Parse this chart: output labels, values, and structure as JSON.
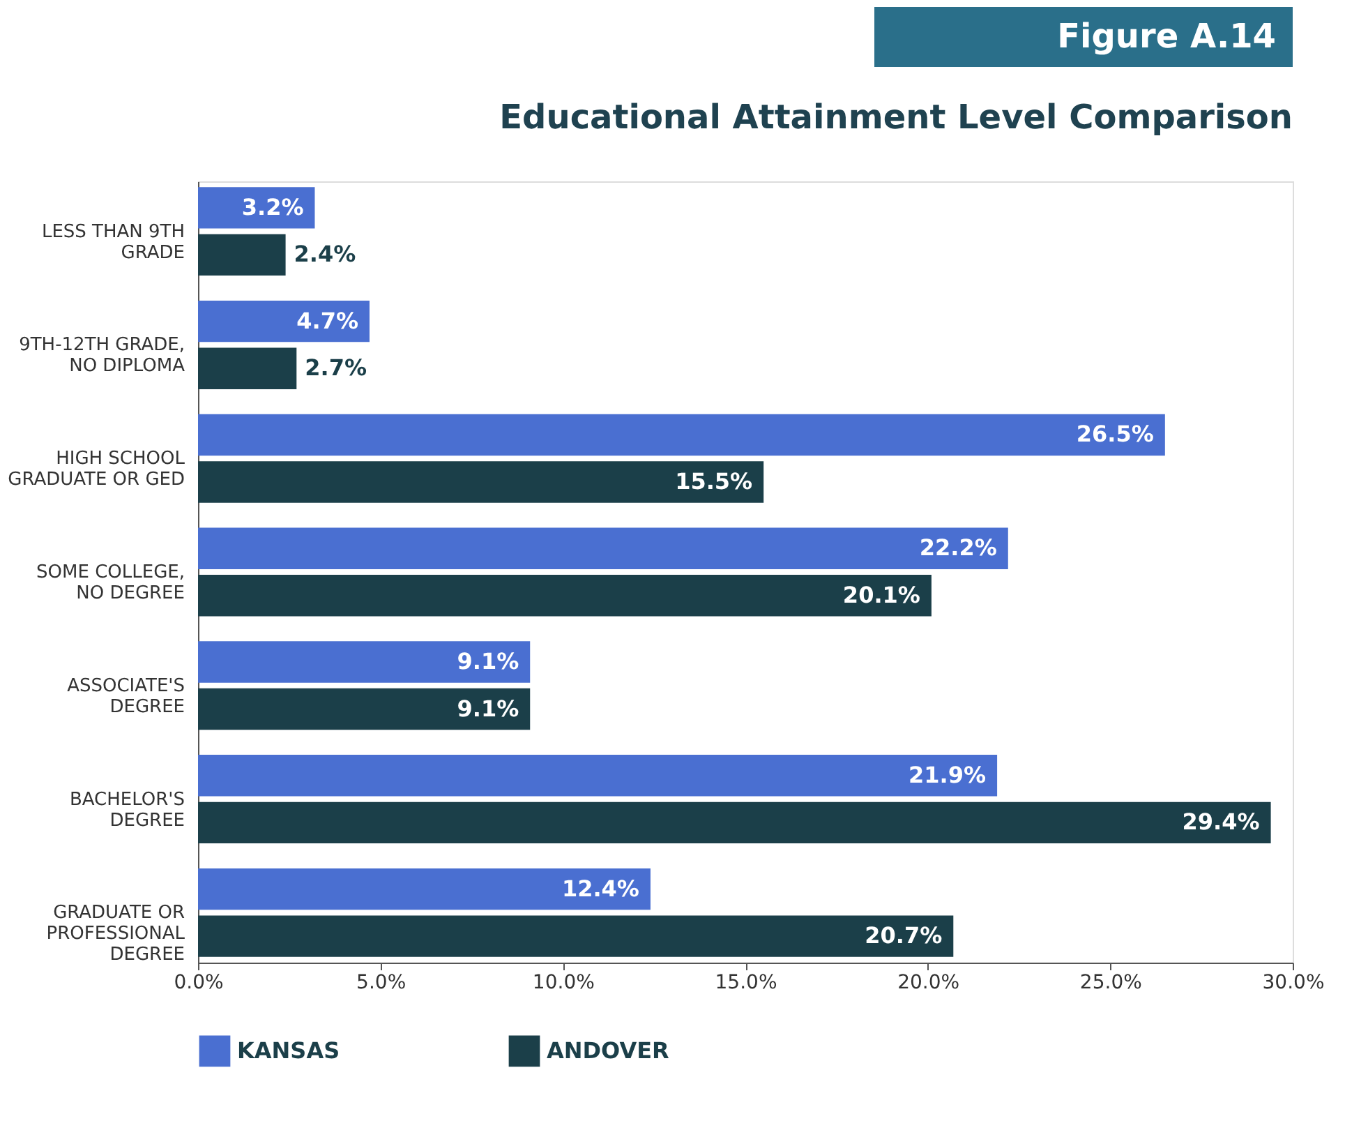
{
  "chart_data": {
    "type": "bar",
    "orientation": "horizontal",
    "title": "Educational Attainment Level Comparison",
    "annotations": [
      "Figure A.14"
    ],
    "categories": [
      "LESS THAN 9TH GRADE",
      "9TH-12TH GRADE, NO DIPLOMA",
      "HIGH SCHOOL GRADUATE OR GED",
      "SOME COLLEGE, NO DEGREE",
      "ASSOCIATE'S DEGREE",
      "BACHELOR'S DEGREE",
      "GRADUATE OR PROFESSIONAL DEGREE"
    ],
    "series": [
      {
        "name": "KANSAS",
        "color": "#4a6fd1",
        "values": [
          3.2,
          4.7,
          26.5,
          22.2,
          9.1,
          21.9,
          12.4
        ],
        "value_labels": [
          "3.2%",
          "4.7%",
          "26.5%",
          "22.2%",
          "9.1%",
          "21.9%",
          "12.4%"
        ]
      },
      {
        "name": "ANDOVER",
        "color": "#1b3f49",
        "values": [
          2.4,
          2.7,
          15.5,
          20.1,
          9.1,
          29.4,
          20.7
        ],
        "value_labels": [
          "2.4%",
          "2.7%",
          "15.5%",
          "20.1%",
          "9.1%",
          "29.4%",
          "20.7%"
        ]
      }
    ],
    "xlim": [
      0,
      30
    ],
    "xticks": [
      {
        "value": 0,
        "label": "0.0%"
      },
      {
        "value": 5,
        "label": "5.0%"
      },
      {
        "value": 10,
        "label": "10.0%"
      },
      {
        "value": 15,
        "label": "15.0%"
      },
      {
        "value": 20,
        "label": "20.0%"
      },
      {
        "value": 25,
        "label": "25.0%"
      },
      {
        "value": 30,
        "label": "30.0%"
      }
    ],
    "grid": false,
    "legend": "bottom"
  }
}
